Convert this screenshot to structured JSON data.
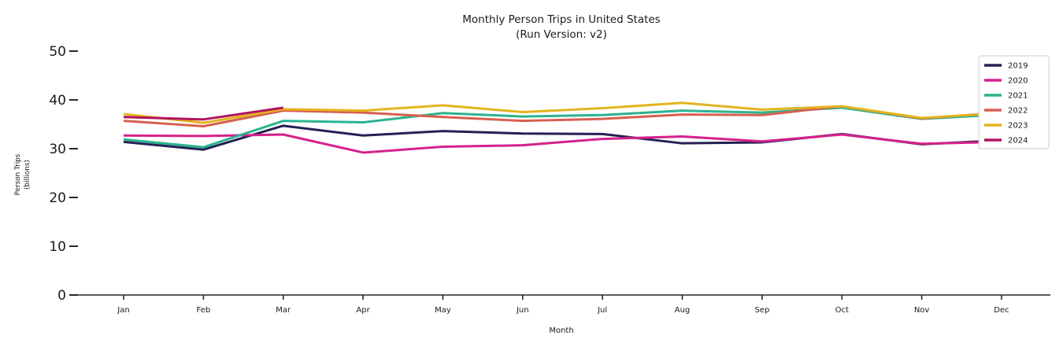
{
  "chart_data": {
    "type": "line",
    "title": "Monthly Person Trips in United States",
    "subtitle": "(Run Version: v2)",
    "xlabel": "Month",
    "ylabel_lines": [
      "Person Trips",
      "(billions)"
    ],
    "categories": [
      "Jan",
      "Feb",
      "Mar",
      "Apr",
      "May",
      "Jun",
      "Jul",
      "Aug",
      "Sep",
      "Oct",
      "Nov",
      "Dec"
    ],
    "y_ticks": [
      0,
      10,
      20,
      30,
      40,
      50
    ],
    "ylim": [
      0,
      50
    ],
    "grid": false,
    "legend_position": "upper right",
    "units": "billions of person trips",
    "series": [
      {
        "name": "2019",
        "color": "#232155",
        "values": [
          31.4,
          29.8,
          34.7,
          32.7,
          33.6,
          33.1,
          33.0,
          31.1,
          31.3,
          33.0,
          30.9,
          31.7
        ]
      },
      {
        "name": "2020",
        "color": "#d6218c",
        "values": [
          32.7,
          32.6,
          32.9,
          29.2,
          30.4,
          30.7,
          32.0,
          32.5,
          31.5,
          32.9,
          31.0,
          31.4
        ]
      },
      {
        "name": "2021",
        "color": "#2bb390",
        "values": [
          31.9,
          30.3,
          35.7,
          35.4,
          37.3,
          36.6,
          36.9,
          37.8,
          37.4,
          38.4,
          36.1,
          37.0
        ]
      },
      {
        "name": "2022",
        "color": "#d85f50",
        "values": [
          35.7,
          34.6,
          37.8,
          37.4,
          36.5,
          35.7,
          36.1,
          37.0,
          36.9,
          38.7,
          36.2,
          37.4
        ]
      },
      {
        "name": "2023",
        "color": "#e4b41f",
        "values": [
          37.1,
          35.3,
          38.1,
          37.8,
          38.9,
          37.5,
          38.3,
          39.4,
          38.0,
          38.7,
          36.3,
          37.3
        ]
      },
      {
        "name": "2024",
        "color": "#b2145f",
        "values": [
          36.5,
          36.0,
          38.4,
          null,
          null,
          null,
          null,
          null,
          null,
          null,
          null,
          null
        ]
      }
    ],
    "axis_color": "#262626"
  }
}
